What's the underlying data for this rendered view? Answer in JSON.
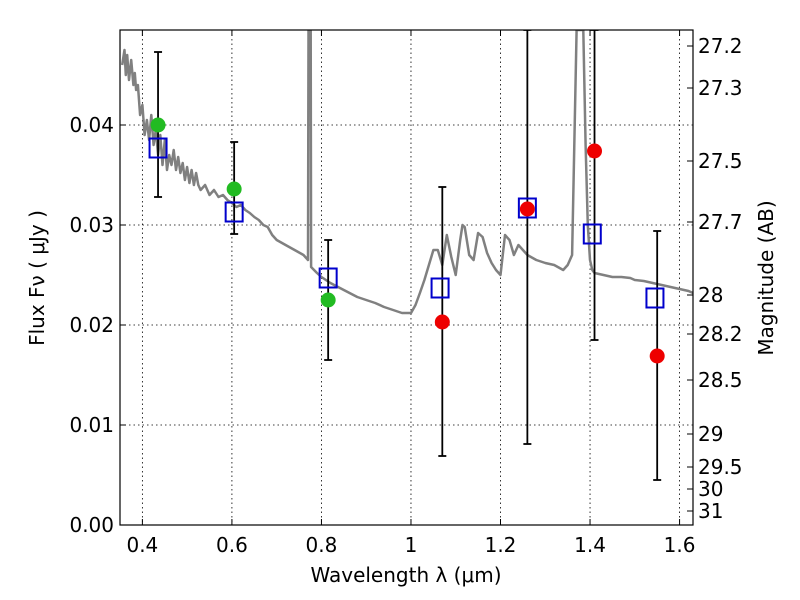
{
  "chart_data": {
    "type": "scatter",
    "title": "",
    "xlabel": "Wavelength  λ (μm)",
    "ylabel": "Flux  Fν  ( μJy )",
    "y2label": "Magnitude (AB)",
    "xlim": [
      0.35,
      1.63
    ],
    "ylim": [
      0.0,
      0.0495
    ],
    "grid": true,
    "xticks": [
      0.4,
      0.6,
      0.8,
      1.0,
      1.2,
      1.4,
      1.6
    ],
    "xtick_labels": [
      "0.4",
      "0.6",
      "0.8",
      "1",
      "1.2",
      "1.4",
      "1.6"
    ],
    "yticks": [
      0.0,
      0.01,
      0.02,
      0.03,
      0.04
    ],
    "ytick_labels": [
      "0.00",
      "0.01",
      "0.02",
      "0.03",
      "0.04"
    ],
    "y2ticks": [
      {
        "label": "27.2",
        "flux": 0.0479
      },
      {
        "label": "27.3",
        "flux": 0.0437
      },
      {
        "label": "27.5",
        "flux": 0.0364
      },
      {
        "label": "27.7",
        "flux": 0.0303
      },
      {
        "label": "28",
        "flux": 0.023
      },
      {
        "label": "28.2",
        "flux": 0.0191
      },
      {
        "label": "28.5",
        "flux": 0.0145
      },
      {
        "label": "29",
        "flux": 0.0091
      },
      {
        "label": "29.5",
        "flux": 0.0058
      },
      {
        "label": "30",
        "flux": 0.0036
      },
      {
        "label": "31",
        "flux": 0.0014
      }
    ],
    "colors": {
      "model": "#808080",
      "model_flux": "#0000cc",
      "detection": "#22bb22",
      "nondetection": "#ee0000",
      "errorbar": "#000000"
    },
    "series": [
      {
        "name": "model_spectrum",
        "kind": "line",
        "x": [
          0.355,
          0.36,
          0.363,
          0.366,
          0.37,
          0.375,
          0.38,
          0.383,
          0.386,
          0.39,
          0.395,
          0.4,
          0.405,
          0.41,
          0.415,
          0.42,
          0.425,
          0.43,
          0.435,
          0.44,
          0.445,
          0.45,
          0.455,
          0.46,
          0.465,
          0.47,
          0.475,
          0.48,
          0.485,
          0.49,
          0.495,
          0.5,
          0.505,
          0.51,
          0.515,
          0.52,
          0.525,
          0.53,
          0.54,
          0.55,
          0.56,
          0.57,
          0.58,
          0.59,
          0.6,
          0.61,
          0.62,
          0.63,
          0.64,
          0.65,
          0.66,
          0.67,
          0.68,
          0.69,
          0.7,
          0.72,
          0.74,
          0.76,
          0.77,
          0.771,
          0.775,
          0.776,
          0.777,
          0.79,
          0.8,
          0.82,
          0.85,
          0.88,
          0.9,
          0.92,
          0.94,
          0.96,
          0.98,
          1.0,
          1.01,
          1.02,
          1.03,
          1.04,
          1.05,
          1.06,
          1.07,
          1.08,
          1.09,
          1.1,
          1.11,
          1.115,
          1.12,
          1.13,
          1.14,
          1.15,
          1.16,
          1.17,
          1.18,
          1.19,
          1.2,
          1.21,
          1.22,
          1.23,
          1.24,
          1.25,
          1.26,
          1.28,
          1.3,
          1.32,
          1.34,
          1.35,
          1.36,
          1.37,
          1.375,
          1.38,
          1.385,
          1.39,
          1.395,
          1.4,
          1.405,
          1.41,
          1.43,
          1.45,
          1.47,
          1.49,
          1.5,
          1.52,
          1.54,
          1.56,
          1.58,
          1.6,
          1.62,
          1.63
        ],
        "y": [
          0.046,
          0.0475,
          0.045,
          0.047,
          0.0445,
          0.0465,
          0.044,
          0.0452,
          0.0435,
          0.044,
          0.041,
          0.042,
          0.039,
          0.0405,
          0.0385,
          0.041,
          0.038,
          0.0395,
          0.037,
          0.039,
          0.036,
          0.0385,
          0.0355,
          0.037,
          0.036,
          0.0375,
          0.0355,
          0.0368,
          0.0352,
          0.0362,
          0.0345,
          0.0358,
          0.0342,
          0.0355,
          0.034,
          0.0352,
          0.034,
          0.0335,
          0.034,
          0.033,
          0.0335,
          0.0328,
          0.033,
          0.0325,
          0.0322,
          0.0318,
          0.032,
          0.0315,
          0.0312,
          0.0308,
          0.0305,
          0.03,
          0.0298,
          0.029,
          0.0285,
          0.028,
          0.0275,
          0.027,
          0.0265,
          0.0495,
          0.0495,
          0.0495,
          0.0258,
          0.0252,
          0.0248,
          0.0242,
          0.0235,
          0.0228,
          0.0225,
          0.0222,
          0.0218,
          0.0215,
          0.0212,
          0.0212,
          0.022,
          0.0232,
          0.0245,
          0.026,
          0.0275,
          0.0275,
          0.026,
          0.029,
          0.0268,
          0.025,
          0.0285,
          0.03,
          0.0298,
          0.027,
          0.0265,
          0.0292,
          0.0288,
          0.0272,
          0.0262,
          0.0255,
          0.025,
          0.029,
          0.0285,
          0.027,
          0.028,
          0.0275,
          0.027,
          0.0265,
          0.0262,
          0.026,
          0.0255,
          0.026,
          0.027,
          0.0495,
          0.0495,
          0.0495,
          0.0495,
          0.038,
          0.03,
          0.0265,
          0.0255,
          0.0252,
          0.025,
          0.0248,
          0.0248,
          0.0247,
          0.0245,
          0.0244,
          0.0242,
          0.024,
          0.0238,
          0.0236,
          0.0234,
          0.0232
        ]
      },
      {
        "name": "model_bandpass_flux",
        "kind": "square",
        "x": [
          0.435,
          0.605,
          0.815,
          1.065,
          1.26,
          1.405,
          1.545
        ],
        "y": [
          0.0377,
          0.0313,
          0.0247,
          0.0237,
          0.0317,
          0.0291,
          0.0227
        ]
      },
      {
        "name": "observed_flux",
        "kind": "circle",
        "x": [
          0.435,
          0.605,
          0.815,
          1.07,
          1.26,
          1.41,
          1.55
        ],
        "y": [
          0.04,
          0.0336,
          0.0225,
          0.0203,
          0.0316,
          0.0374,
          0.0169
        ],
        "color_role": [
          "detection",
          "detection",
          "detection",
          "nondetection",
          "nondetection",
          "nondetection",
          "nondetection"
        ],
        "err_low": [
          0.0328,
          0.0291,
          0.0165,
          0.0069,
          0.0081,
          0.0185,
          0.0045
        ],
        "err_high": [
          0.0473,
          0.0383,
          0.0285,
          0.0338,
          0.0495,
          0.0495,
          0.0294
        ]
      }
    ]
  }
}
